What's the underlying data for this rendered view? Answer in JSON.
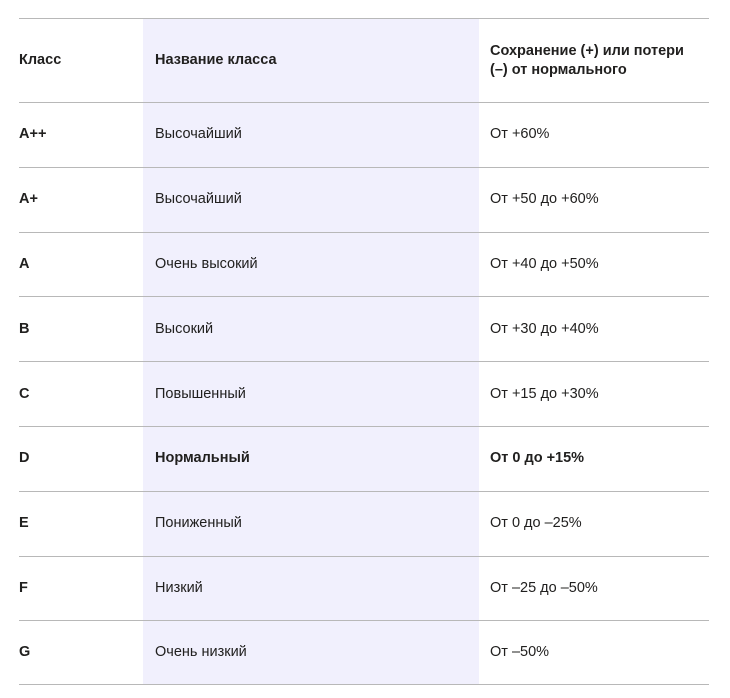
{
  "table": {
    "headers": {
      "class": "Класс",
      "name": "Название класса",
      "change": "Сохранение (+) или потери (–) от нормального"
    },
    "rows": [
      {
        "class": "A++",
        "name": "Высочайший",
        "change": "От +60%"
      },
      {
        "class": "A+",
        "name": "Высочайший",
        "change": "От +50 до +60%"
      },
      {
        "class": "A",
        "name": "Очень высокий",
        "change": "От +40 до +50%"
      },
      {
        "class": "B",
        "name": "Высокий",
        "change": "От +30 до +40%"
      },
      {
        "class": "C",
        "name": "Повышенный",
        "change": "От +15 до +30%"
      },
      {
        "class": "D",
        "name": "Нормальный",
        "change": "От 0 до +15%"
      },
      {
        "class": "E",
        "name": "Пониженный",
        "change": "От 0 до –25%"
      },
      {
        "class": "F",
        "name": "Низкий",
        "change": "От –25 до –50%"
      },
      {
        "class": "G",
        "name": "Очень низкий",
        "change": "От –50%"
      }
    ],
    "highlight_color": "#f1f0fd",
    "border_color": "#b8b8b8"
  }
}
